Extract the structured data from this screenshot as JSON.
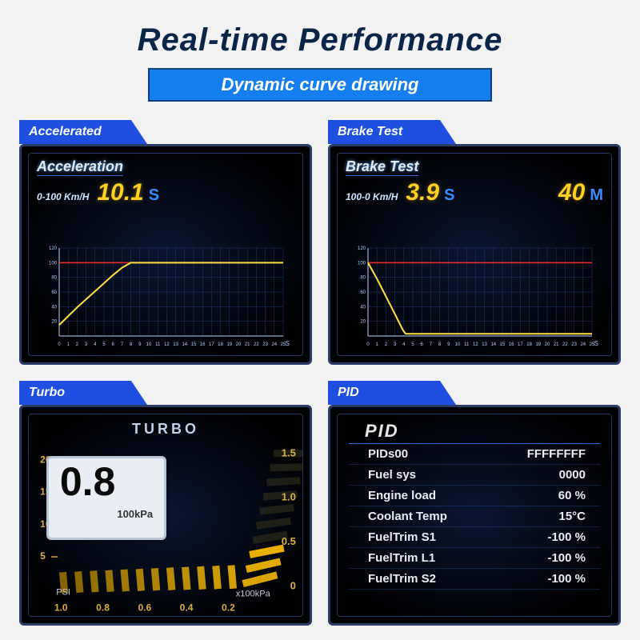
{
  "title": "Real-time Performance",
  "subtitle": "Dynamic curve drawing",
  "colors": {
    "page_bg": "#f2f2f2",
    "title_color": "#0a2548",
    "subtitle_bg": "#157ff2",
    "subtitle_border": "#0b3f7a",
    "subtitle_text": "#ffffff",
    "label_bg": "#1f4fe0",
    "screen_bg": "#000000",
    "screen_border": "#2a3b6a",
    "grid_line": "#2a4a9a",
    "axis_color": "#b8d0ff",
    "threshold_line": "#ff2a2a",
    "curve_color": "#ffe040",
    "value_color": "#ffd020",
    "unit_color": "#3a8bff",
    "turbo_segment": "#f0b400",
    "turbo_box_bg": "#e8eef4",
    "pid_text": "#e8ecf4"
  },
  "panels": {
    "accel": {
      "label": "Accelerated",
      "title": "Acceleration",
      "range_label": "0-100  Km/H",
      "value": "10.1",
      "unit": "S",
      "chart": {
        "type": "line",
        "x_ticks": [
          0,
          1,
          2,
          3,
          4,
          5,
          6,
          7,
          8,
          9,
          10,
          11,
          12,
          13,
          14,
          15,
          16,
          17,
          18,
          19,
          20,
          21,
          22,
          23,
          24,
          25
        ],
        "x_unit": "S",
        "y_ticks": [
          20,
          40,
          60,
          80,
          100,
          120
        ],
        "ylim": [
          0,
          120
        ],
        "threshold_y": 100,
        "points": [
          [
            0,
            15
          ],
          [
            1,
            27
          ],
          [
            2,
            39
          ],
          [
            3,
            50
          ],
          [
            4,
            61
          ],
          [
            5,
            72
          ],
          [
            6,
            83
          ],
          [
            7,
            93
          ],
          [
            8,
            100
          ],
          [
            25,
            100
          ]
        ]
      }
    },
    "brake": {
      "label": "Brake Test",
      "title": "Brake Test",
      "range_label": "100-0  Km/H",
      "value1": "3.9",
      "unit1": "S",
      "value2": "40",
      "unit2": "M",
      "chart": {
        "type": "line",
        "x_ticks": [
          0,
          1,
          2,
          3,
          4,
          5,
          6,
          7,
          8,
          9,
          10,
          11,
          12,
          13,
          14,
          15,
          16,
          17,
          18,
          19,
          20,
          21,
          22,
          23,
          24,
          25
        ],
        "x_unit": "S",
        "y_ticks": [
          20,
          40,
          60,
          80,
          100,
          120
        ],
        "ylim": [
          0,
          120
        ],
        "threshold_y": 100,
        "points": [
          [
            0,
            100
          ],
          [
            1,
            78
          ],
          [
            2,
            54
          ],
          [
            3,
            30
          ],
          [
            3.9,
            8
          ],
          [
            4.2,
            3
          ],
          [
            25,
            3
          ]
        ]
      }
    },
    "turbo": {
      "label": "Turbo",
      "title": "TURBO",
      "value": "0.8",
      "unit": "100kPa",
      "left_scale": [
        20,
        15,
        10,
        5
      ],
      "right_scale": [
        "1.5",
        "1.0",
        "0.5",
        "0"
      ],
      "bottom_scale": [
        "1.0",
        "0.8",
        "0.6",
        "0.4",
        "0.2"
      ],
      "bottom_left_label": "PSI",
      "bottom_right_label": "x100kPa",
      "segment_count": 22,
      "segments_lit": 15
    },
    "pid": {
      "label": "PID",
      "title": "PID",
      "rows": [
        {
          "k": "PIDs00",
          "v": "FFFFFFFF"
        },
        {
          "k": "Fuel sys",
          "v": "0000"
        },
        {
          "k": "Engine load",
          "v": "60 %"
        },
        {
          "k": "Coolant Temp",
          "v": "15°C"
        },
        {
          "k": "FuelTrim S1",
          "v": "-100 %"
        },
        {
          "k": "FuelTrim L1",
          "v": "-100 %"
        },
        {
          "k": "FuelTrim S2",
          "v": "-100 %"
        }
      ]
    }
  }
}
